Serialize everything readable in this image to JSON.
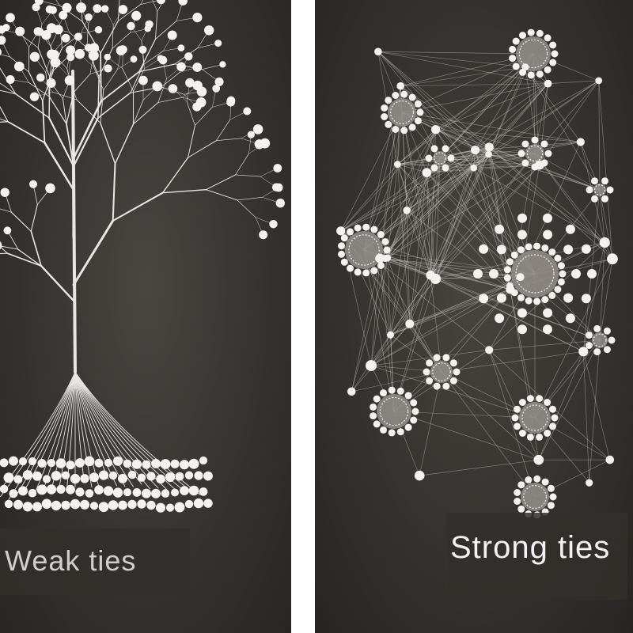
{
  "panels": {
    "left": {
      "caption": "Weak ties"
    },
    "right": {
      "caption": "Strong ties"
    }
  },
  "colors": {
    "background_dark": "#35322f",
    "node_white": "#f4f2ee",
    "branch_white": "#e8e6e2",
    "divider": "#ffffff"
  }
}
